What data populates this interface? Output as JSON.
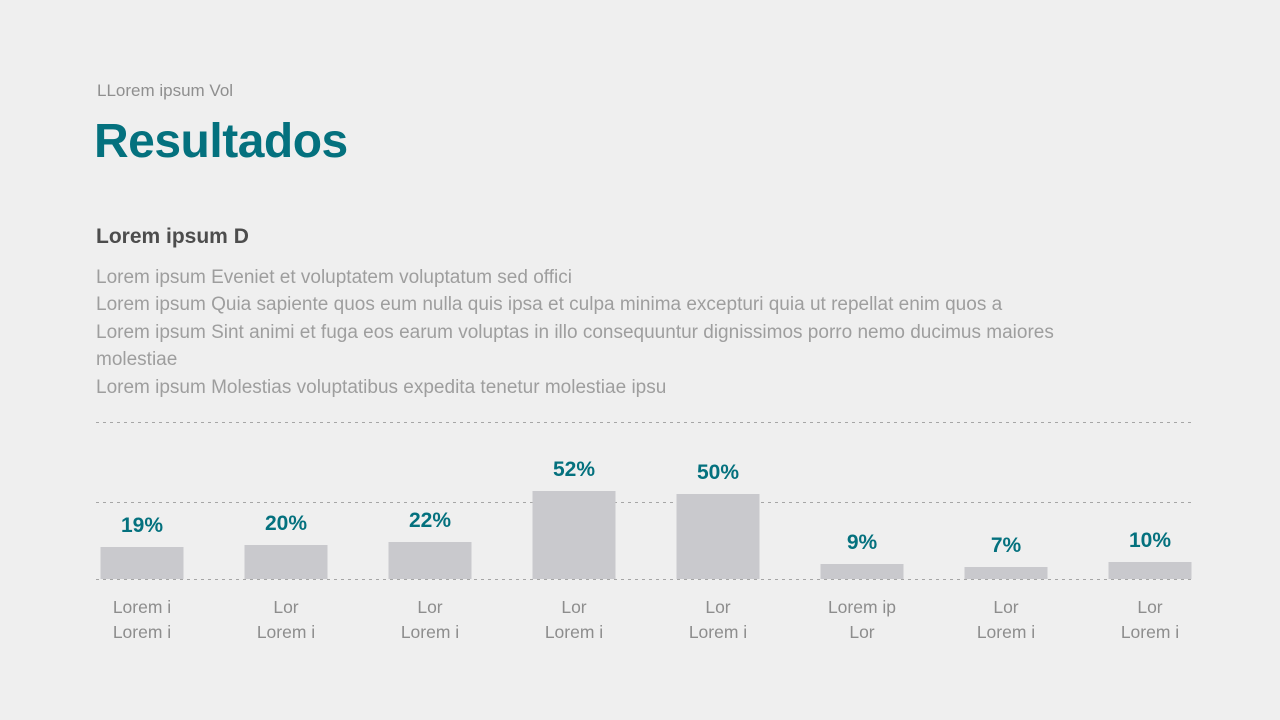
{
  "slide": {
    "kicker": "LLorem ipsum Vol",
    "title": "Resultados",
    "section_heading": "Lorem ipsum D",
    "paragraph_lines": [
      "Lorem ipsum Eveniet et voluptatem voluptatum sed offici",
      "Lorem ipsum Quia sapiente quos eum nulla quis ipsa et culpa minima excepturi quia ut repellat enim quos a",
      "Lorem ipsum Sint animi et fuga eos earum voluptas in illo consequuntur dignissimos porro nemo ducimus maiores molestiae",
      "Lorem ipsum Molestias voluptatibus expedita tenetur molestiae ipsu"
    ]
  },
  "colors": {
    "background": "#efefef",
    "accent_teal": "#04717e",
    "bar_gray": "#c9c9cd",
    "body_text_gray": "#9e9e9e",
    "heading_gray": "#4d4d4d"
  },
  "chart_data": {
    "type": "bar",
    "title": "",
    "xlabel": "",
    "ylabel": "",
    "categories": [
      [
        "Lorem i",
        "Lorem i"
      ],
      [
        "Lor",
        "Lorem i"
      ],
      [
        "Lor",
        "Lorem i"
      ],
      [
        "Lor",
        "Lorem i"
      ],
      [
        "Lor",
        "Lorem i"
      ],
      [
        "Lorem ip",
        "Lor"
      ],
      [
        "Lor",
        "Lorem i"
      ],
      [
        "Lor",
        "Lorem i"
      ]
    ],
    "values": [
      19,
      20,
      22,
      52,
      50,
      9,
      7,
      10
    ],
    "value_suffix": "%",
    "ylim": [
      0,
      60
    ],
    "grid": true,
    "grid_style": "dashed",
    "legend": false,
    "bar_color": "#c9c9cd",
    "value_label_color": "#04717e"
  }
}
